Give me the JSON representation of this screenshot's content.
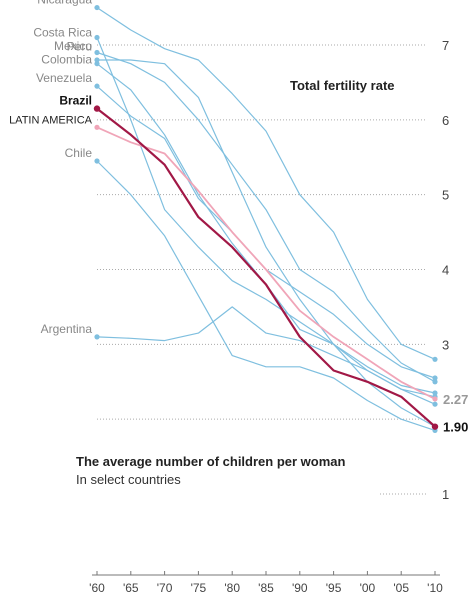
{
  "title": "Total fertility rate",
  "subtitle": "The average number of children per woman",
  "subtitle2": "In select countries",
  "chart_data": {
    "type": "line",
    "x": [
      1960,
      1965,
      1970,
      1975,
      1980,
      1985,
      1990,
      1995,
      2000,
      2005,
      2010
    ],
    "x_tick_labels": [
      "'60",
      "'65",
      "'70",
      "'75",
      "'80",
      "'85",
      "'90",
      "'95",
      "'00",
      "'05",
      "'10"
    ],
    "y_ticks": [
      1,
      2,
      3,
      4,
      5,
      6,
      7
    ],
    "y_tick_labels": [
      "1",
      "",
      "3",
      "4",
      "5",
      "6",
      "7"
    ],
    "ylim": [
      1,
      7.6
    ],
    "end_labels": {
      "latin_america": "2.27",
      "brazil": "1.90"
    },
    "colors": {
      "country": "#7fbfdf",
      "brazil": "#a11846",
      "latin_america": "#f0a5b8",
      "grid": "#aaaaaa",
      "text": "#888888"
    },
    "series": [
      {
        "name": "Nicaragua",
        "kind": "country",
        "values": [
          7.5,
          7.2,
          6.95,
          6.8,
          6.35,
          5.85,
          5.0,
          4.5,
          3.6,
          3.0,
          2.8
        ]
      },
      {
        "name": "Costa Rica",
        "kind": "country",
        "values": [
          7.1,
          6.0,
          4.8,
          4.3,
          3.85,
          3.6,
          3.3,
          3.0,
          2.5,
          2.15,
          1.9
        ]
      },
      {
        "name": "Peru",
        "kind": "country",
        "values": [
          6.9,
          6.75,
          6.5,
          6.0,
          5.4,
          4.8,
          4.0,
          3.7,
          3.2,
          2.75,
          2.5
        ]
      },
      {
        "name": "Mexico",
        "kind": "country",
        "values": [
          6.8,
          6.8,
          6.75,
          6.3,
          5.3,
          4.3,
          3.6,
          3.0,
          2.65,
          2.4,
          2.3
        ]
      },
      {
        "name": "Colombia",
        "kind": "country",
        "values": [
          6.75,
          6.4,
          5.8,
          5.0,
          4.35,
          3.8,
          3.2,
          3.0,
          2.7,
          2.45,
          2.35
        ]
      },
      {
        "name": "Venezuela",
        "kind": "country",
        "values": [
          6.45,
          6.05,
          5.75,
          4.95,
          4.5,
          4.0,
          3.7,
          3.4,
          3.0,
          2.7,
          2.55
        ]
      },
      {
        "name": "Chile",
        "kind": "country",
        "values": [
          5.45,
          5.0,
          4.45,
          3.65,
          2.85,
          2.7,
          2.7,
          2.55,
          2.25,
          2.0,
          1.85
        ]
      },
      {
        "name": "Argentina",
        "kind": "country",
        "values": [
          3.1,
          3.08,
          3.05,
          3.15,
          3.5,
          3.15,
          3.05,
          2.85,
          2.65,
          2.4,
          2.2
        ]
      },
      {
        "name": "LATIN AMERICA",
        "kind": "latin_america",
        "values": [
          5.9,
          5.7,
          5.55,
          5.05,
          4.5,
          4.0,
          3.45,
          3.1,
          2.8,
          2.5,
          2.27
        ]
      },
      {
        "name": "Brazil",
        "kind": "brazil",
        "values": [
          6.15,
          5.8,
          5.4,
          4.7,
          4.3,
          3.8,
          3.1,
          2.65,
          2.5,
          2.3,
          1.9
        ]
      }
    ]
  }
}
